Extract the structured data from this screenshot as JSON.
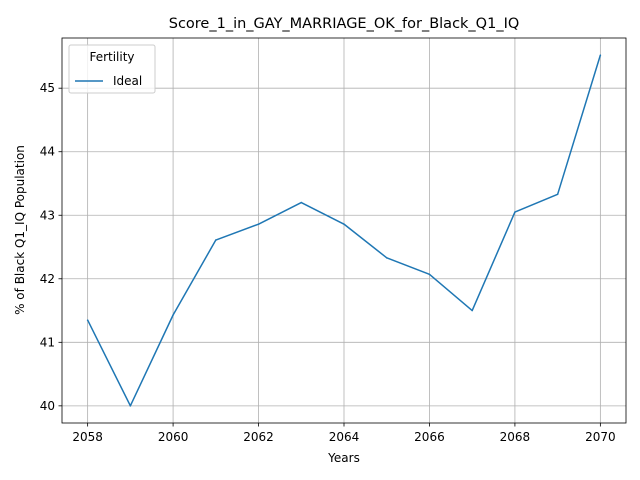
{
  "chart_data": {
    "type": "line",
    "title": "Score_1_in_GAY_MARRIAGE_OK_for_Black_Q1_IQ",
    "xlabel": "Years",
    "ylabel": "% of Black Q1_IQ Population",
    "x": [
      2058,
      2059,
      2060,
      2061,
      2062,
      2063,
      2064,
      2065,
      2066,
      2067,
      2068,
      2069,
      2070
    ],
    "series": [
      {
        "name": "Ideal",
        "color": "#1f77b4",
        "values": [
          41.35,
          40.0,
          41.43,
          42.61,
          42.86,
          43.2,
          42.86,
          42.33,
          42.07,
          41.5,
          43.05,
          43.33,
          45.52
        ]
      }
    ],
    "xlim": [
      2057.4,
      2070.6
    ],
    "ylim": [
      39.73,
      45.79
    ],
    "xticks": [
      2058,
      2060,
      2062,
      2064,
      2066,
      2068,
      2070
    ],
    "yticks": [
      40,
      41,
      42,
      43,
      44,
      45
    ],
    "grid": true,
    "legend": {
      "title": "Fertility",
      "placement": "top-left"
    }
  }
}
